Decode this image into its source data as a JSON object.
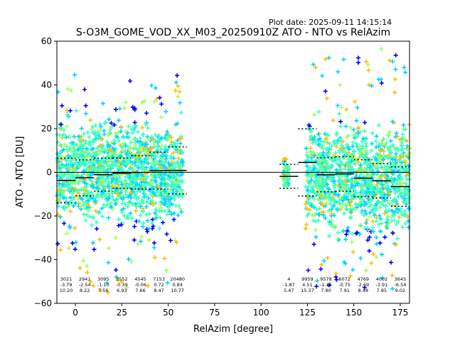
{
  "plot_date": "Plot date: 2025-09-11 14:15:14",
  "chart_data": {
    "type": "scatter",
    "title": "S-O3M_GOME_VOD_XX_M03_20250910Z ATO - NTO vs RelAzim",
    "xlabel": "RelAzim [degree]",
    "ylabel": "ATO - NTO [DU]",
    "xlim": [
      -10,
      180
    ],
    "ylim": [
      -60,
      60
    ],
    "xticks": [
      0,
      25,
      50,
      75,
      100,
      125,
      150,
      175
    ],
    "yticks": [
      -60,
      -40,
      -20,
      0,
      20,
      40,
      60
    ],
    "grid": false,
    "marker": "plus",
    "colors": {
      "low": "#0000ff",
      "mid_low": "#00d4ff",
      "mid": "#40ffc0",
      "mid_high": "#a0ff60",
      "high": "#ffc000",
      "zero_line": "#000000",
      "std_line": "#000000"
    },
    "point_clusters": [
      {
        "x": [
          -10,
          58
        ],
        "y_core": [
          -25,
          25
        ],
        "extreme_y": [
          -55,
          45
        ]
      },
      {
        "x": [
          112,
          115
        ],
        "y_core": [
          -8,
          6
        ],
        "extreme_y": [
          -8,
          6
        ]
      },
      {
        "x": [
          124,
          180
        ],
        "y_core": [
          -30,
          25
        ],
        "extreme_y": [
          -55,
          57
        ]
      }
    ],
    "bins": [
      {
        "x_start": -10,
        "x_end": 0,
        "count": "3021",
        "mean": "-3.79",
        "std": "10.20",
        "mean_val": -3.79,
        "std_val": 10.2
      },
      {
        "x_start": 0,
        "x_end": 10,
        "count": "2941",
        "mean": "-2.54",
        "std": "8.22",
        "mean_val": -2.54,
        "std_val": 8.22
      },
      {
        "x_start": 10,
        "x_end": 20,
        "count": "3095",
        "mean": "-1.10",
        "std": "7.56",
        "mean_val": -1.1,
        "std_val": 7.56
      },
      {
        "x_start": 20,
        "x_end": 30,
        "count": "3552",
        "mean": "-0.39",
        "std": "6.93",
        "mean_val": -0.39,
        "std_val": 6.93
      },
      {
        "x_start": 30,
        "x_end": 40,
        "count": "4545",
        "mean": "-0.06",
        "std": "7.66",
        "mean_val": -0.06,
        "std_val": 7.66
      },
      {
        "x_start": 40,
        "x_end": 50,
        "count": "7153",
        "mean": "0.72",
        "std": "8.47",
        "mean_val": 0.72,
        "std_val": 8.47
      },
      {
        "x_start": 50,
        "x_end": 60,
        "count": "20480",
        "mean": "0.84",
        "std": "10.77",
        "mean_val": 0.84,
        "std_val": 10.77
      },
      {
        "x_start": 110,
        "x_end": 120,
        "count": "4",
        "mean": "-1.87",
        "std": "5.47",
        "mean_val": -1.87,
        "std_val": 5.47
      },
      {
        "x_start": 120,
        "x_end": 130,
        "count": "9959",
        "mean": "4.51",
        "std": "15.37",
        "mean_val": 4.51,
        "std_val": 15.37
      },
      {
        "x_start": 130,
        "x_end": 140,
        "count": "9578",
        "mean": "-1.15",
        "std": "7.80",
        "mean_val": -1.15,
        "std_val": 7.8
      },
      {
        "x_start": 140,
        "x_end": 150,
        "count": "6072",
        "mean": "-0.75",
        "std": "7.91",
        "mean_val": -0.75,
        "std_val": 7.91
      },
      {
        "x_start": 150,
        "x_end": 160,
        "count": "4769",
        "mean": "-2.69",
        "std": "8.48",
        "mean_val": -2.69,
        "std_val": 8.48
      },
      {
        "x_start": 160,
        "x_end": 170,
        "count": "4002",
        "mean": "-3.91",
        "std": "7.85",
        "mean_val": -3.91,
        "std_val": 7.85
      },
      {
        "x_start": 170,
        "x_end": 180,
        "count": "3645",
        "mean": "-6.54",
        "std": "9.02",
        "mean_val": -6.54,
        "std_val": 9.02
      }
    ]
  }
}
